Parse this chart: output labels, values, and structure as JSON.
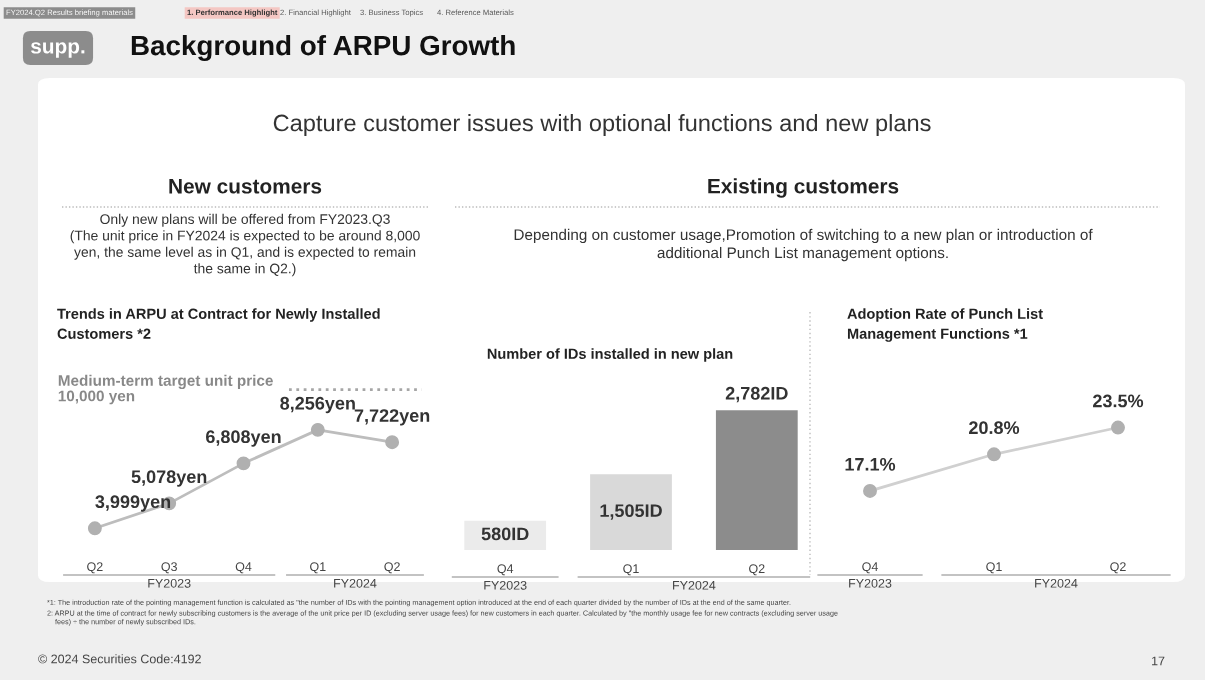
{
  "chart_data": [
    {
      "type": "other",
      "title": "Background of ARPU Growth",
      "annotations": [
        "FY2024.Q2 Results briefing materials",
        "1. Performance Highlight",
        "2. Financial Highlight",
        "3. Business Topics",
        "4. Reference Materials",
        "supp.",
        "Capture customer issues with optional functions and new plans",
        "New customers",
        "Only new plans will be offered from FY2023.Q3\n(The unit price in FY2024 is expected to be around 8,000\nyen, the same level as in Q1, and is expected to remain\nthe same in Q2.)",
        "Existing customers",
        "Depending on customer usage,Promotion of switching to a new plan or introduction of\nadditional Punch List management options.",
        "*1: The introduction rate of the pointing management function is calculated as \"the number of IDs with the pointing management option introduced at the end of each quarter divided by the number of IDs at the end of the same quarter.",
        "2: ARPU at the time of contract for newly subscribing customers is the average of the unit price per ID (excluding server usage fees) for new customers in each quarter. Calculated by \"the monthly usage fee for new contracts (excluding server usage\n    fees) ÷ the number of newly subscribed IDs.",
        "© 2024 Securities Code:4192",
        "17"
      ]
    },
    {
      "type": "line",
      "title": "Trends in ARPU at Contract for Newly Installed\nCustomers *2",
      "categories": [
        "Q2",
        "Q3",
        "Q4",
        "Q1",
        "Q2"
      ],
      "series": [
        {
          "color": "#bdbdbd",
          "values": [
            3999,
            5078,
            6808,
            8256,
            7722
          ],
          "value_labels": [
            "3,999yen",
            "5,078yen",
            "6,808yen",
            "8,256yen",
            "7,722yen"
          ]
        }
      ],
      "marker": "circle",
      "ref_lines": [
        {
          "axis": "y",
          "value": 10000,
          "label": "Medium-term target unit price\n10,000 yen",
          "line_style": "dotted",
          "color": "#a6a6a6"
        }
      ],
      "annotations": [
        "FY2023",
        "FY2024"
      ]
    },
    {
      "type": "bar",
      "title": "Number of IDs installed in new plan",
      "categories": [
        "Q4",
        "Q1",
        "Q2"
      ],
      "values": [
        580,
        1505,
        2782
      ],
      "colors": [
        "#ebebeb",
        "#d9d9d9",
        "#8c8c8c"
      ],
      "value_labels": [
        "580ID",
        "1,505ID",
        "2,782ID"
      ],
      "annotations": [
        "FY2023",
        "FY2024"
      ]
    },
    {
      "type": "line",
      "title": "Adoption Rate of Punch List\nManagement Functions *1",
      "categories": [
        "Q4",
        "Q1",
        "Q2"
      ],
      "series": [
        {
          "color": "#d0d0d0",
          "values": [
            17.1,
            20.8,
            23.5
          ],
          "value_labels": [
            "17.1%",
            "20.8%",
            "23.5%"
          ]
        }
      ],
      "marker": "circle",
      "annotations": [
        "FY2023",
        "FY2024"
      ]
    }
  ]
}
